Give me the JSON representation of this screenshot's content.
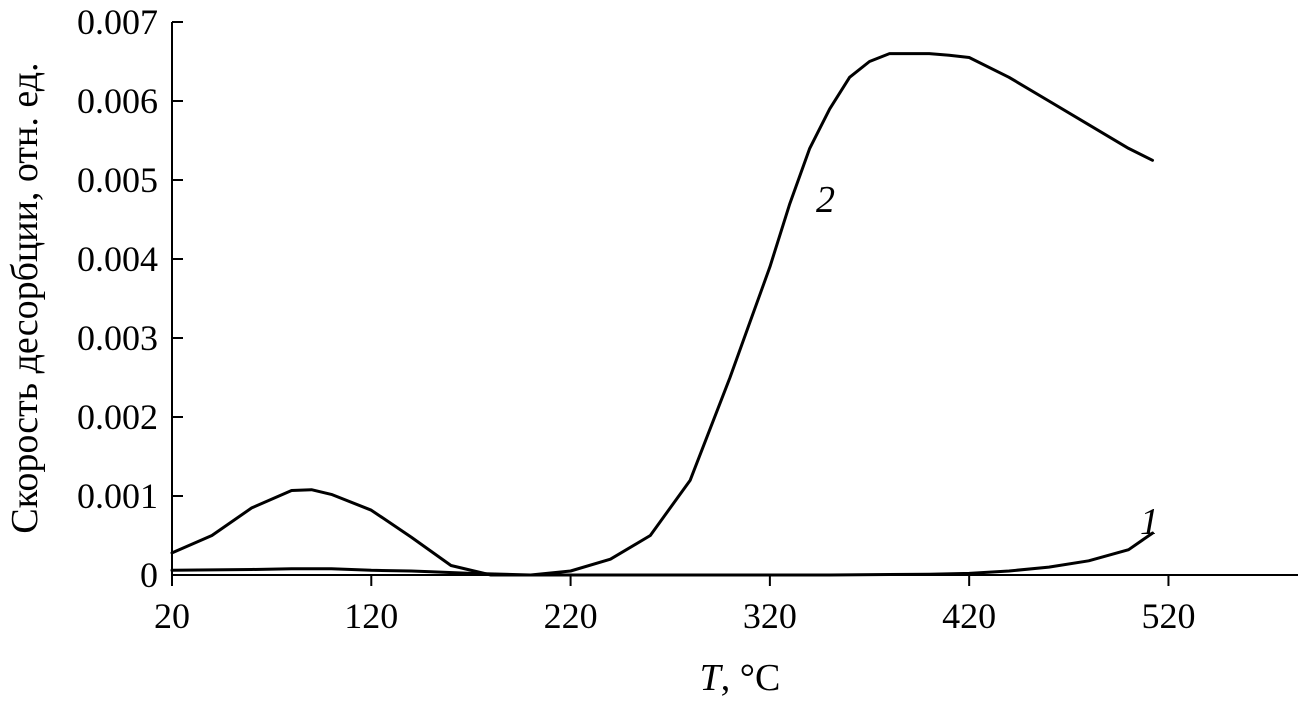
{
  "chart_data": {
    "type": "line",
    "xlabel_var": "T",
    "xlabel_unit": ", °C",
    "ylabel": "Скорость десорбции, отн. ед.",
    "xlim": [
      20,
      585
    ],
    "ylim": [
      0,
      0.007
    ],
    "xticks": [
      "20",
      "120",
      "220",
      "320",
      "420",
      "520"
    ],
    "yticks": [
      "0",
      "0.001",
      "0.002",
      "0.003",
      "0.004",
      "0.005",
      "0.006",
      "0.007"
    ],
    "grid": false,
    "series": [
      {
        "name": "1",
        "x": [
          20,
          60,
          80,
          100,
          120,
          140,
          150,
          170,
          200,
          250,
          300,
          350,
          400,
          420,
          440,
          460,
          480,
          500,
          512
        ],
        "y": [
          6e-05,
          7e-05,
          8e-05,
          8e-05,
          6e-05,
          5e-05,
          4e-05,
          2e-05,
          0.0,
          0.0,
          0.0,
          0.0,
          1e-05,
          2e-05,
          5e-05,
          0.0001,
          0.00018,
          0.00032,
          0.00053
        ]
      },
      {
        "name": "2",
        "x": [
          20,
          40,
          60,
          80,
          90,
          100,
          120,
          140,
          160,
          180,
          200,
          220,
          240,
          260,
          280,
          300,
          310,
          320,
          330,
          340,
          350,
          360,
          370,
          380,
          390,
          400,
          410,
          420,
          440,
          460,
          480,
          500,
          512
        ],
        "y": [
          0.00028,
          0.0005,
          0.00085,
          0.00107,
          0.00108,
          0.00102,
          0.00082,
          0.00048,
          0.00012,
          0.0,
          0.0,
          5e-05,
          0.0002,
          0.0005,
          0.0012,
          0.0025,
          0.0032,
          0.0039,
          0.0047,
          0.0054,
          0.0059,
          0.0063,
          0.0065,
          0.0066,
          0.0066,
          0.0066,
          0.00658,
          0.00655,
          0.0063,
          0.006,
          0.0057,
          0.0054,
          0.00525
        ]
      }
    ]
  }
}
